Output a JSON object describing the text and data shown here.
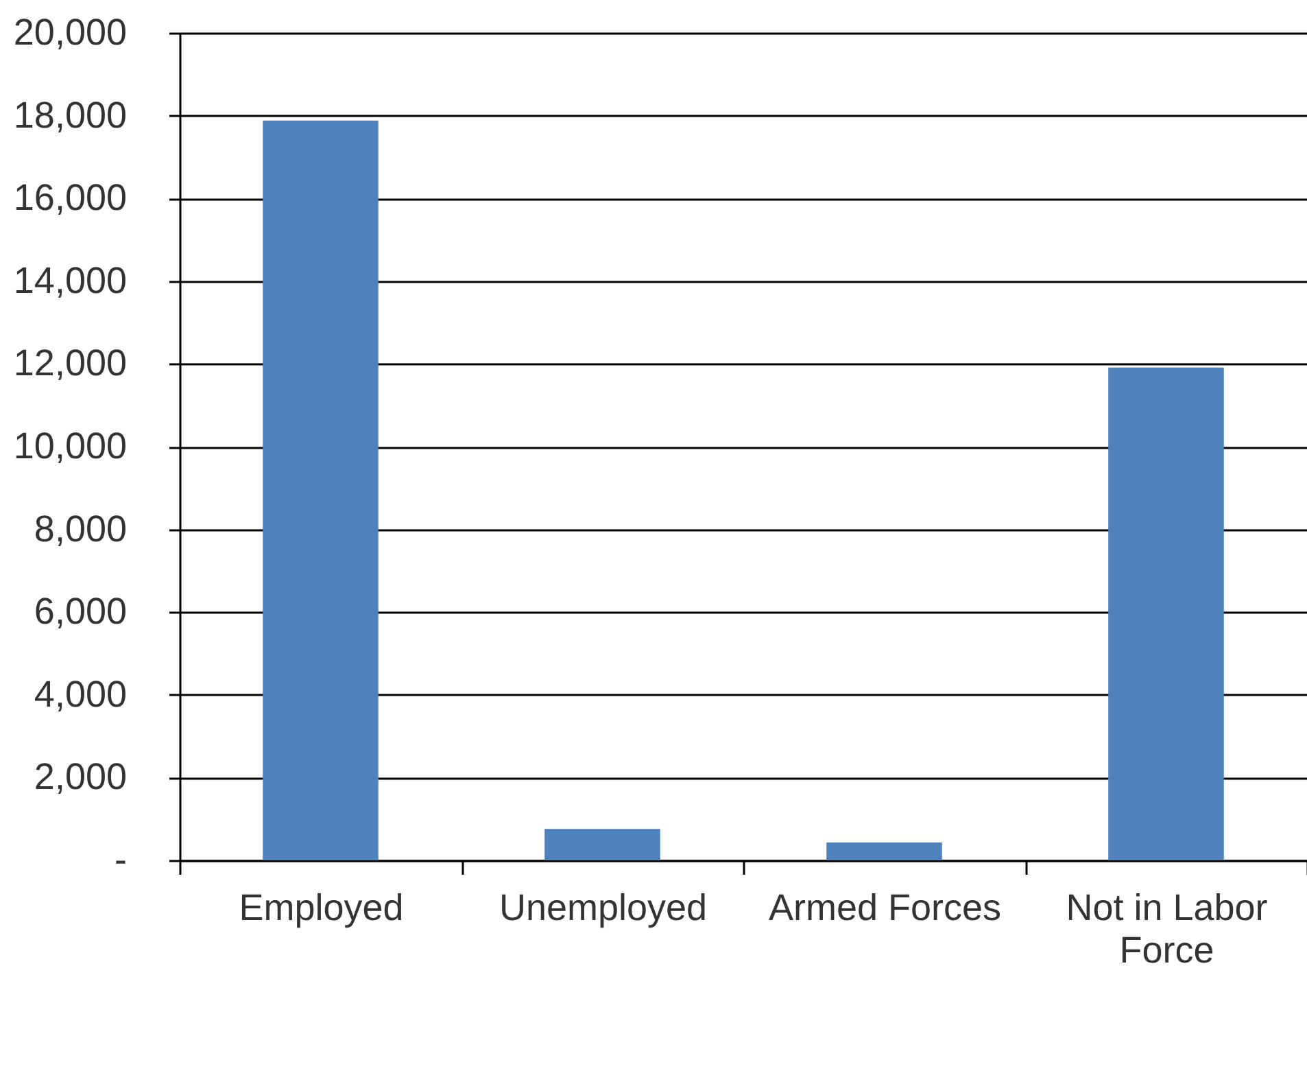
{
  "chart_data": {
    "type": "bar",
    "categories": [
      "Employed",
      "Unemployed",
      "Armed Forces",
      "Not in Labor Force"
    ],
    "values": [
      17880,
      760,
      430,
      11910
    ],
    "color": "#4f81bd",
    "ylim": [
      0,
      20000
    ],
    "yticks": [
      {
        "value": 0,
        "label": "-"
      },
      {
        "value": 2000,
        "label": "2,000"
      },
      {
        "value": 4000,
        "label": "4,000"
      },
      {
        "value": 6000,
        "label": "6,000"
      },
      {
        "value": 8000,
        "label": "8,000"
      },
      {
        "value": 10000,
        "label": "10,000"
      },
      {
        "value": 12000,
        "label": "12,000"
      },
      {
        "value": 14000,
        "label": "14,000"
      },
      {
        "value": 16000,
        "label": "16,000"
      },
      {
        "value": 18000,
        "label": "18,000"
      },
      {
        "value": 20000,
        "label": "20,000"
      }
    ],
    "grid": "y"
  }
}
